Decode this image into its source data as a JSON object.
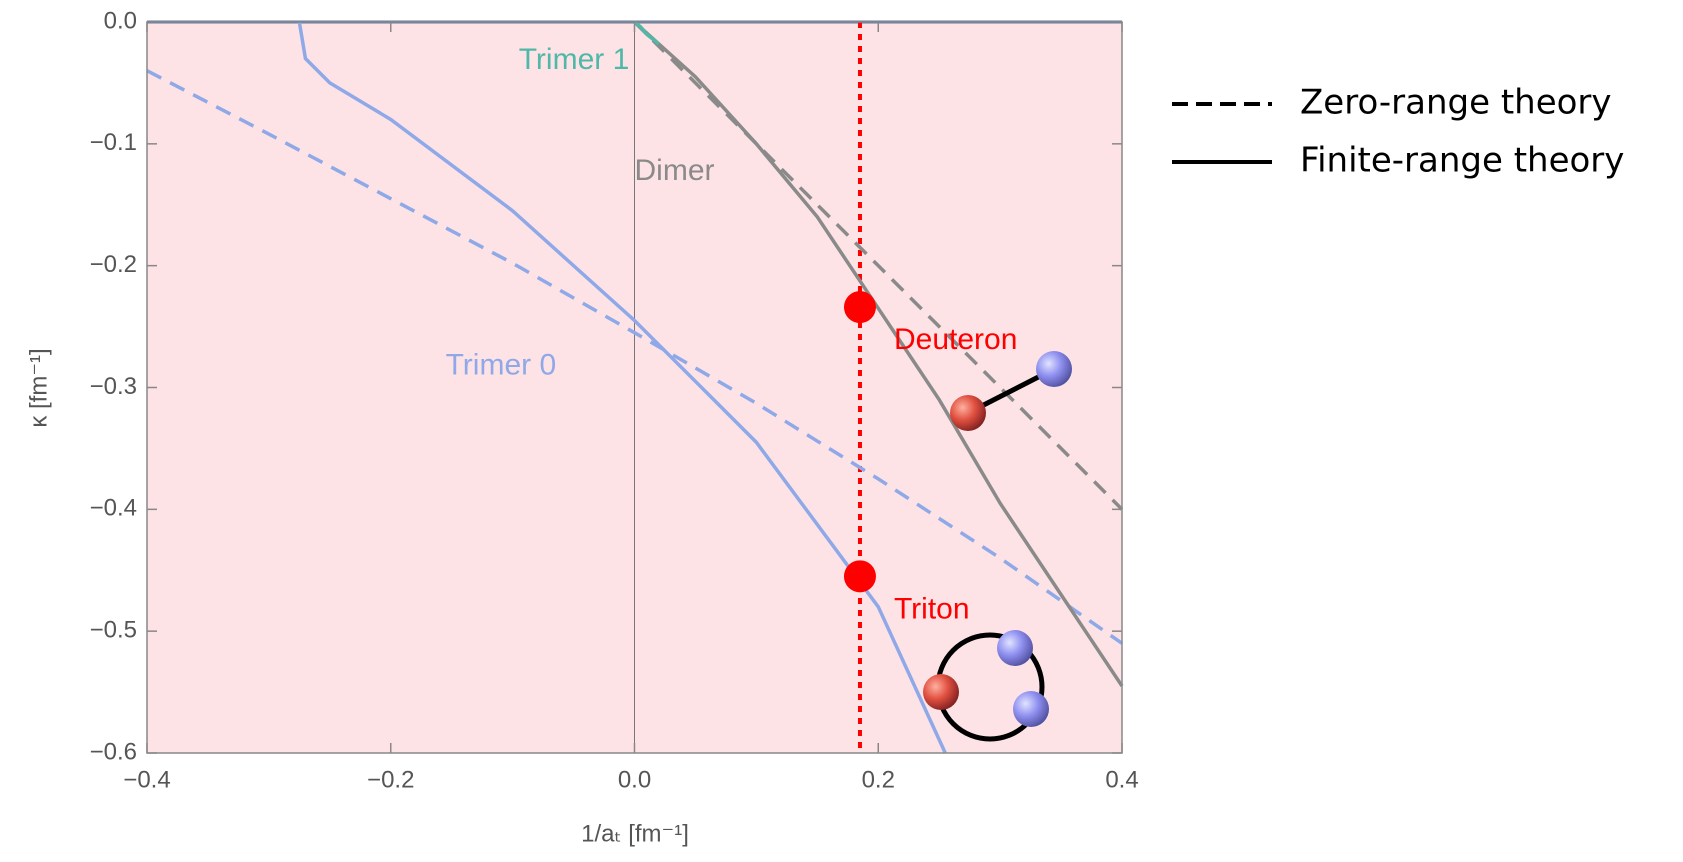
{
  "chart_data": {
    "type": "line",
    "xlabel": "1/aₜ [fm⁻¹]",
    "ylabel": "κ [fm⁻¹]",
    "xlim": [
      -0.4,
      0.4
    ],
    "ylim": [
      -0.6,
      0.0
    ],
    "xticks": [
      {
        "value": -0.4,
        "label": "−0.4"
      },
      {
        "value": -0.2,
        "label": "−0.2"
      },
      {
        "value": 0,
        "label": "0.0"
      },
      0.2,
      0.4
    ],
    "yticks": [
      {
        "value": 0,
        "label": "0.0"
      },
      {
        "value": -0.1,
        "label": "−0.1"
      },
      {
        "value": -0.2,
        "label": "−0.2"
      },
      {
        "value": -0.3,
        "label": "−0.3"
      },
      {
        "value": -0.4,
        "label": "−0.4"
      },
      {
        "value": -0.5,
        "label": "−0.5"
      },
      {
        "value": -0.6,
        "label": "−0.6"
      }
    ],
    "background": "#fde3e5",
    "series": [
      {
        "color": "#8fa9e8",
        "dash": true,
        "x": [
          -0.4,
          -0.3,
          -0.2,
          -0.1,
          0,
          0.1,
          0.2,
          0.3,
          0.4
        ],
        "values": [
          -0.04,
          -0.092,
          -0.145,
          -0.198,
          -0.255,
          -0.313,
          -0.375,
          -0.44,
          -0.51
        ]
      },
      {
        "color": "#8fa9e8",
        "dash": false,
        "x": [
          -0.275,
          -0.27,
          -0.25,
          -0.2,
          -0.1,
          0,
          0.1,
          0.2,
          0.255
        ],
        "values": [
          0.0,
          -0.03,
          -0.05,
          -0.08,
          -0.155,
          -0.245,
          -0.345,
          -0.48,
          -0.6
        ]
      },
      {
        "color": "#8a8a8a",
        "dash": true,
        "x": [
          0,
          0.1,
          0.2,
          0.3,
          0.4
        ],
        "values": [
          0,
          -0.1,
          -0.2,
          -0.3,
          -0.4
        ]
      },
      {
        "color": "#8a8a8a",
        "dash": false,
        "x": [
          0,
          0.05,
          0.1,
          0.15,
          0.2,
          0.25,
          0.3,
          0.35,
          0.4
        ],
        "values": [
          0,
          -0.045,
          -0.1,
          -0.16,
          -0.235,
          -0.31,
          -0.395,
          -0.47,
          -0.545
        ]
      },
      {
        "color": "#4fb8a8",
        "dash": false,
        "x": [
          0,
          0.005,
          0.01,
          0.02
        ],
        "values": [
          0,
          -0.004,
          -0.01,
          -0.018
        ]
      }
    ],
    "reference_lines": [
      {
        "axis": "y",
        "value": 0,
        "color": "#5f78a8",
        "width": 3,
        "dotted": false
      },
      {
        "axis": "x",
        "value": 0,
        "color": "#777777",
        "width": 1,
        "dotted": false
      },
      {
        "axis": "x",
        "value": 0.185,
        "color": "#ff0000",
        "width": 4,
        "dotted": true
      }
    ],
    "points": [
      {
        "x": 0.185,
        "y": -0.234,
        "label": "Deuteron",
        "color": "#ff0000"
      },
      {
        "x": 0.185,
        "y": -0.455,
        "label": "Triton",
        "color": "#ff0000"
      }
    ],
    "annotations": [
      {
        "text": "Trimer 1",
        "x": -0.095,
        "y": -0.032,
        "color": "#4fb8a8"
      },
      {
        "text": "Dimer",
        "x": 0.0,
        "y": -0.123,
        "color": "#8a8a8a"
      },
      {
        "text": "Trimer 0",
        "x": -0.155,
        "y": -0.283,
        "color": "#8fa9e8"
      }
    ],
    "legend": [
      {
        "label": "Zero-range theory",
        "dash": true
      },
      {
        "label": "Finite-range theory",
        "dash": false
      }
    ]
  }
}
